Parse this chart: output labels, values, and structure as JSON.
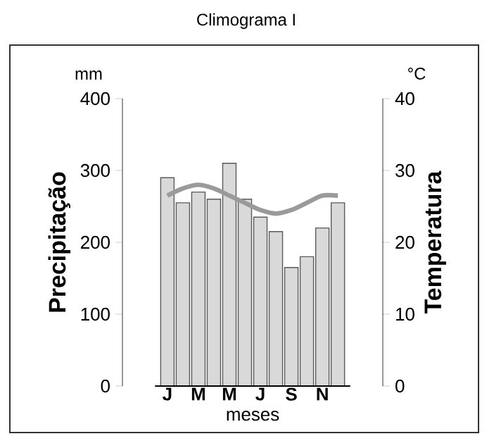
{
  "chart_data": {
    "type": "bar",
    "title": "Climograma I",
    "xlabel": "meses",
    "ylabel": "Precipitação",
    "y2label": "Temperatura",
    "annotations": [
      "mm",
      "°C"
    ],
    "categories": [
      "J",
      null,
      "M",
      null,
      "M",
      null,
      "J",
      null,
      "S",
      null,
      "N",
      null
    ],
    "series": [
      {
        "color": "#d9d9d9",
        "values": [
          290,
          255,
          270,
          260,
          310,
          260,
          235,
          215,
          165,
          180,
          220,
          255
        ]
      },
      {
        "type": "line",
        "axis": "y2",
        "color": "#9a9a9a",
        "values": [
          26.5,
          27.5,
          28,
          27.5,
          26.5,
          25.5,
          24.5,
          24,
          24.5,
          25.5,
          26.5,
          26.5
        ]
      }
    ],
    "ylim": [
      0,
      400
    ],
    "yticks": [
      0,
      100,
      200,
      300,
      400
    ],
    "y2lim": [
      0,
      40
    ],
    "y2ticks": [
      0,
      10,
      20,
      30,
      40
    ]
  }
}
